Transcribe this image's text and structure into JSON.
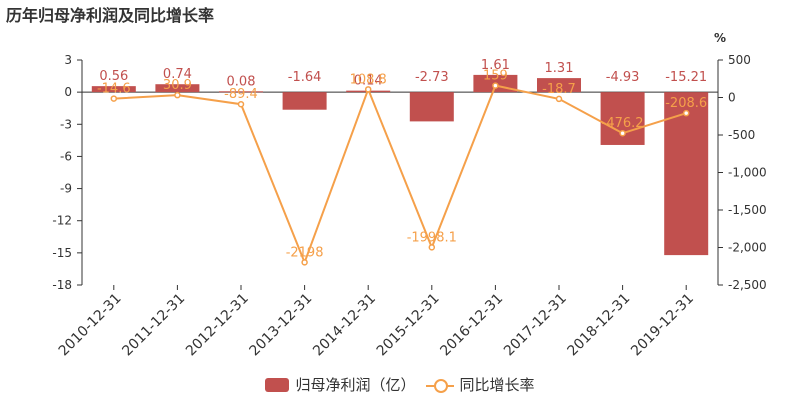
{
  "title": "历年归母净利润及同比增长率",
  "colors": {
    "bar": "#c1504e",
    "line": "#f5a04a",
    "axis": "#333333",
    "grid": "#e6e6e6"
  },
  "chart_data": {
    "type": "bar",
    "title": "历年归母净利润及同比增长率",
    "categories": [
      "2010-12-31",
      "2011-12-31",
      "2012-12-31",
      "2013-12-31",
      "2014-12-31",
      "2015-12-31",
      "2016-12-31",
      "2017-12-31",
      "2018-12-31",
      "2019-12-31"
    ],
    "series": [
      {
        "name": "归母净利润（亿）",
        "type": "bar",
        "axis": "left",
        "values": [
          0.56,
          0.74,
          0.08,
          -1.64,
          0.14,
          -2.73,
          1.61,
          1.31,
          -4.93,
          -15.21
        ],
        "labels": [
          "0.56",
          "0.74",
          "0.08",
          "-1.64",
          "0.14",
          "-2.73",
          "1.61",
          "1.31",
          "-4.93",
          "-15.21"
        ]
      },
      {
        "name": "同比增长率",
        "type": "line",
        "axis": "right",
        "values": [
          -14.6,
          30.9,
          -89.4,
          -2198,
          108.8,
          -1998.1,
          159,
          -18.7,
          -476.2,
          -208.6
        ],
        "labels": [
          "-14.6",
          "30.9",
          "-89.4",
          "-2198",
          "108.8",
          "-1998.1",
          "159",
          "-18.7",
          "-476.2",
          "-208.6"
        ]
      }
    ],
    "y_left": {
      "ylim": [
        -18,
        3
      ],
      "ticks": [
        "3",
        "0",
        "-3",
        "-6",
        "-9",
        "-12",
        "-15",
        "-18"
      ]
    },
    "y_right": {
      "ylim": [
        -2500,
        500
      ],
      "unit": "%",
      "ticks": [
        "500",
        "0",
        "-500",
        "-1,000",
        "-1,500",
        "-2,000",
        "-2,500"
      ]
    },
    "legend": {
      "position": "bottom",
      "items": [
        "归母净利润（亿）",
        "同比增长率"
      ]
    },
    "grid": false
  }
}
